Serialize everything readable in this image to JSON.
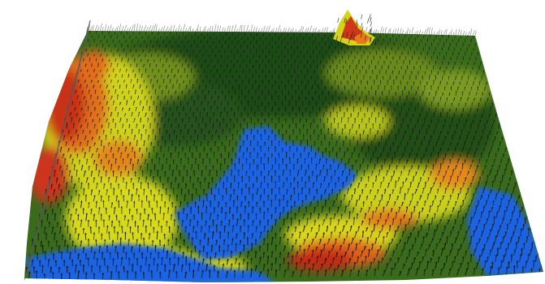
{
  "scene": {
    "subject": "terrain-vector-field",
    "colormap": {
      "water": "#1e63e0",
      "lowland_dark_green": "#1f4a1a",
      "lowland_green": "#3d6e1c",
      "midland_olive": "#8aa01e",
      "upland_yellow": "#e8e21a",
      "highland_orange": "#e2741a",
      "peak_red": "#c8321a",
      "arrow": "#101410"
    },
    "background": "#ffffff"
  }
}
